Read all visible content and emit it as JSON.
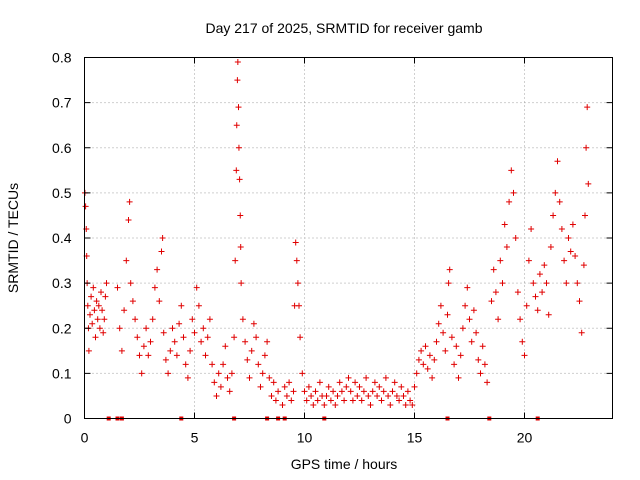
{
  "chart_data": {
    "type": "scatter",
    "title": "Day 217 of 2025, SRMTID for receiver gamb",
    "xlabel": "GPS time / hours",
    "ylabel": "SRMTID / TECUs",
    "xlim": [
      0,
      24
    ],
    "ylim": [
      0,
      0.8
    ],
    "xticks": [
      0,
      5,
      10,
      15,
      20
    ],
    "yticks": [
      0,
      0.1,
      0.2,
      0.3,
      0.4,
      0.5,
      0.6,
      0.7,
      0.8
    ],
    "ytick_labels": [
      "0",
      "0.1",
      "0.2",
      "0.3",
      "0.4",
      "0.5",
      "0.6",
      "0.7",
      "0.8"
    ],
    "grid": true,
    "marker": "+",
    "color": "#e00000",
    "series": [
      {
        "name": "SRMTID",
        "points": [
          [
            0.02,
            0.5
          ],
          [
            0.05,
            0.47
          ],
          [
            0.08,
            0.42
          ],
          [
            0.1,
            0.36
          ],
          [
            0.12,
            0.3
          ],
          [
            0.15,
            0.25
          ],
          [
            0.18,
            0.2
          ],
          [
            0.2,
            0.15
          ],
          [
            0.25,
            0.23
          ],
          [
            0.3,
            0.27
          ],
          [
            0.35,
            0.21
          ],
          [
            0.4,
            0.29
          ],
          [
            0.45,
            0.24
          ],
          [
            0.5,
            0.18
          ],
          [
            0.55,
            0.26
          ],
          [
            0.6,
            0.22
          ],
          [
            0.65,
            0.25
          ],
          [
            0.7,
            0.2
          ],
          [
            0.75,
            0.28
          ],
          [
            0.8,
            0.24
          ],
          [
            0.85,
            0.19
          ],
          [
            0.9,
            0.22
          ],
          [
            0.95,
            0.27
          ],
          [
            1.0,
            0.3
          ],
          [
            1.5,
            0.29
          ],
          [
            1.6,
            0.2
          ],
          [
            1.7,
            0.15
          ],
          [
            1.8,
            0.24
          ],
          [
            1.9,
            0.35
          ],
          [
            2.0,
            0.44
          ],
          [
            2.05,
            0.48
          ],
          [
            2.1,
            0.3
          ],
          [
            2.2,
            0.26
          ],
          [
            2.3,
            0.22
          ],
          [
            2.4,
            0.18
          ],
          [
            2.5,
            0.14
          ],
          [
            2.6,
            0.1
          ],
          [
            2.7,
            0.16
          ],
          [
            2.8,
            0.2
          ],
          [
            2.9,
            0.14
          ],
          [
            3.0,
            0.17
          ],
          [
            3.1,
            0.22
          ],
          [
            3.2,
            0.29
          ],
          [
            3.3,
            0.33
          ],
          [
            3.4,
            0.26
          ],
          [
            3.5,
            0.37
          ],
          [
            3.55,
            0.4
          ],
          [
            3.6,
            0.19
          ],
          [
            3.7,
            0.13
          ],
          [
            3.8,
            0.1
          ],
          [
            3.9,
            0.15
          ],
          [
            4.0,
            0.2
          ],
          [
            4.1,
            0.17
          ],
          [
            4.2,
            0.14
          ],
          [
            4.3,
            0.21
          ],
          [
            4.4,
            0.25
          ],
          [
            4.5,
            0.18
          ],
          [
            4.6,
            0.12
          ],
          [
            4.7,
            0.09
          ],
          [
            4.8,
            0.15
          ],
          [
            4.9,
            0.22
          ],
          [
            5.0,
            0.19
          ],
          [
            5.1,
            0.29
          ],
          [
            5.2,
            0.25
          ],
          [
            5.3,
            0.17
          ],
          [
            5.4,
            0.2
          ],
          [
            5.5,
            0.14
          ],
          [
            5.6,
            0.18
          ],
          [
            5.7,
            0.22
          ],
          [
            5.8,
            0.12
          ],
          [
            5.9,
            0.08
          ],
          [
            6.0,
            0.05
          ],
          [
            6.1,
            0.1
          ],
          [
            6.2,
            0.07
          ],
          [
            6.3,
            0.12
          ],
          [
            6.4,
            0.16
          ],
          [
            6.5,
            0.09
          ],
          [
            6.6,
            0.06
          ],
          [
            6.7,
            0.1
          ],
          [
            6.8,
            0.18
          ],
          [
            6.85,
            0.35
          ],
          [
            6.9,
            0.55
          ],
          [
            6.92,
            0.65
          ],
          [
            6.95,
            0.75
          ],
          [
            6.97,
            0.79
          ],
          [
            7.0,
            0.69
          ],
          [
            7.02,
            0.6
          ],
          [
            7.05,
            0.53
          ],
          [
            7.08,
            0.45
          ],
          [
            7.1,
            0.38
          ],
          [
            7.12,
            0.3
          ],
          [
            7.2,
            0.22
          ],
          [
            7.3,
            0.17
          ],
          [
            7.4,
            0.13
          ],
          [
            7.5,
            0.09
          ],
          [
            7.6,
            0.15
          ],
          [
            7.7,
            0.21
          ],
          [
            7.8,
            0.18
          ],
          [
            7.9,
            0.12
          ],
          [
            8.0,
            0.07
          ],
          [
            8.1,
            0.1
          ],
          [
            8.2,
            0.14
          ],
          [
            8.3,
            0.17
          ],
          [
            8.4,
            0.09
          ],
          [
            8.5,
            0.05
          ],
          [
            8.6,
            0.08
          ],
          [
            8.7,
            0.04
          ],
          [
            8.8,
            0.06
          ],
          [
            9.0,
            0.03
          ],
          [
            9.1,
            0.07
          ],
          [
            9.2,
            0.05
          ],
          [
            9.3,
            0.08
          ],
          [
            9.4,
            0.04
          ],
          [
            9.5,
            0.06
          ],
          [
            9.55,
            0.25
          ],
          [
            9.6,
            0.39
          ],
          [
            9.65,
            0.35
          ],
          [
            9.7,
            0.3
          ],
          [
            9.75,
            0.25
          ],
          [
            9.8,
            0.18
          ],
          [
            9.9,
            0.1
          ],
          [
            10.0,
            0.06
          ],
          [
            10.1,
            0.04
          ],
          [
            10.2,
            0.07
          ],
          [
            10.3,
            0.05
          ],
          [
            10.4,
            0.03
          ],
          [
            10.5,
            0.06
          ],
          [
            10.6,
            0.04
          ],
          [
            10.7,
            0.08
          ],
          [
            10.8,
            0.05
          ],
          [
            10.9,
            0.03
          ],
          [
            11.0,
            0.05
          ],
          [
            11.1,
            0.07
          ],
          [
            11.2,
            0.04
          ],
          [
            11.3,
            0.06
          ],
          [
            11.4,
            0.03
          ],
          [
            11.5,
            0.05
          ],
          [
            11.6,
            0.08
          ],
          [
            11.7,
            0.06
          ],
          [
            11.8,
            0.04
          ],
          [
            11.9,
            0.07
          ],
          [
            12.0,
            0.09
          ],
          [
            12.1,
            0.06
          ],
          [
            12.2,
            0.04
          ],
          [
            12.3,
            0.08
          ],
          [
            12.4,
            0.05
          ],
          [
            12.5,
            0.07
          ],
          [
            12.6,
            0.04
          ],
          [
            12.7,
            0.06
          ],
          [
            12.8,
            0.09
          ],
          [
            12.9,
            0.05
          ],
          [
            13.0,
            0.03
          ],
          [
            13.1,
            0.06
          ],
          [
            13.2,
            0.08
          ],
          [
            13.3,
            0.05
          ],
          [
            13.4,
            0.07
          ],
          [
            13.5,
            0.04
          ],
          [
            13.6,
            0.06
          ],
          [
            13.7,
            0.09
          ],
          [
            13.8,
            0.05
          ],
          [
            13.9,
            0.03
          ],
          [
            14.0,
            0.06
          ],
          [
            14.1,
            0.08
          ],
          [
            14.2,
            0.05
          ],
          [
            14.3,
            0.04
          ],
          [
            14.4,
            0.07
          ],
          [
            14.5,
            0.05
          ],
          [
            14.6,
            0.03
          ],
          [
            14.7,
            0.06
          ],
          [
            14.8,
            0.04
          ],
          [
            14.9,
            0.03
          ],
          [
            15.0,
            0.07
          ],
          [
            15.1,
            0.1
          ],
          [
            15.2,
            0.13
          ],
          [
            15.3,
            0.15
          ],
          [
            15.4,
            0.12
          ],
          [
            15.5,
            0.16
          ],
          [
            15.6,
            0.11
          ],
          [
            15.7,
            0.14
          ],
          [
            15.8,
            0.09
          ],
          [
            15.9,
            0.13
          ],
          [
            16.0,
            0.17
          ],
          [
            16.1,
            0.21
          ],
          [
            16.2,
            0.25
          ],
          [
            16.3,
            0.19
          ],
          [
            16.4,
            0.15
          ],
          [
            16.5,
            0.23
          ],
          [
            16.55,
            0.3
          ],
          [
            16.6,
            0.33
          ],
          [
            16.7,
            0.18
          ],
          [
            16.8,
            0.12
          ],
          [
            16.9,
            0.16
          ],
          [
            17.0,
            0.09
          ],
          [
            17.1,
            0.14
          ],
          [
            17.2,
            0.2
          ],
          [
            17.3,
            0.25
          ],
          [
            17.4,
            0.29
          ],
          [
            17.5,
            0.22
          ],
          [
            17.6,
            0.17
          ],
          [
            17.7,
            0.24
          ],
          [
            17.8,
            0.19
          ],
          [
            17.9,
            0.13
          ],
          [
            18.0,
            0.1
          ],
          [
            18.1,
            0.16
          ],
          [
            18.2,
            0.12
          ],
          [
            18.3,
            0.08
          ],
          [
            18.5,
            0.26
          ],
          [
            18.6,
            0.33
          ],
          [
            18.7,
            0.28
          ],
          [
            18.8,
            0.22
          ],
          [
            18.9,
            0.35
          ],
          [
            19.0,
            0.3
          ],
          [
            19.1,
            0.43
          ],
          [
            19.2,
            0.38
          ],
          [
            19.3,
            0.48
          ],
          [
            19.4,
            0.55
          ],
          [
            19.5,
            0.5
          ],
          [
            19.6,
            0.4
          ],
          [
            19.7,
            0.28
          ],
          [
            19.8,
            0.22
          ],
          [
            19.9,
            0.17
          ],
          [
            20.0,
            0.14
          ],
          [
            20.1,
            0.25
          ],
          [
            20.2,
            0.35
          ],
          [
            20.3,
            0.42
          ],
          [
            20.4,
            0.3
          ],
          [
            20.5,
            0.27
          ],
          [
            20.6,
            0.24
          ],
          [
            20.7,
            0.32
          ],
          [
            20.8,
            0.28
          ],
          [
            20.9,
            0.34
          ],
          [
            21.0,
            0.3
          ],
          [
            21.1,
            0.23
          ],
          [
            21.2,
            0.38
          ],
          [
            21.3,
            0.45
          ],
          [
            21.4,
            0.5
          ],
          [
            21.5,
            0.57
          ],
          [
            21.6,
            0.48
          ],
          [
            21.7,
            0.42
          ],
          [
            21.8,
            0.35
          ],
          [
            21.9,
            0.3
          ],
          [
            22.0,
            0.4
          ],
          [
            22.1,
            0.37
          ],
          [
            22.2,
            0.43
          ],
          [
            22.3,
            0.36
          ],
          [
            22.4,
            0.3
          ],
          [
            22.5,
            0.26
          ],
          [
            22.6,
            0.19
          ],
          [
            22.7,
            0.34
          ],
          [
            22.75,
            0.45
          ],
          [
            22.8,
            0.6
          ],
          [
            22.85,
            0.69
          ],
          [
            22.9,
            0.52
          ]
        ]
      }
    ],
    "gap_markers_x": [
      1.1,
      1.5,
      1.7,
      4.4,
      6.8,
      8.3,
      8.8,
      9.1,
      10.9,
      16.5,
      18.4,
      20.6
    ]
  }
}
